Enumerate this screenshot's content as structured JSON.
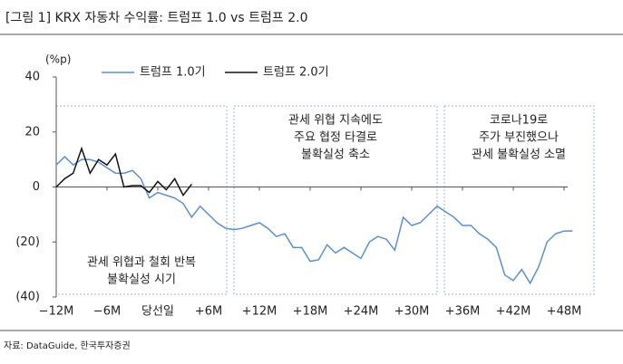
{
  "chart_data": {
    "type": "line",
    "title": "[그림 1] KRX 자동차 수익률: 트럼프 1.0 vs 트럼프 2.0",
    "y_label": "(%p)",
    "source": "자료: DataGuide, 한국투자증권",
    "xlim": [
      -12,
      51
    ],
    "ylim": [
      -40,
      40
    ],
    "xticks": [
      {
        "value": -12,
        "label": "−12M"
      },
      {
        "value": -6,
        "label": "−6M"
      },
      {
        "value": 0,
        "label": "당선일"
      },
      {
        "value": 6,
        "label": "+6M"
      },
      {
        "value": 12,
        "label": "+12M"
      },
      {
        "value": 18,
        "label": "+18M"
      },
      {
        "value": 24,
        "label": "+24M"
      },
      {
        "value": 30,
        "label": "+30M"
      },
      {
        "value": 36,
        "label": "+36M"
      },
      {
        "value": 42,
        "label": "+42M"
      },
      {
        "value": 48,
        "label": "+48M"
      }
    ],
    "yticks": [
      40,
      20,
      0,
      {
        "value": -20,
        "label": "(20)"
      },
      {
        "value": -40,
        "label": "(40)"
      }
    ],
    "series": [
      {
        "name": "트럼프 1.0기",
        "color": "#5b8fcf",
        "x": [
          -12,
          -11,
          -10,
          -9,
          -8,
          -7,
          -6,
          -5,
          -4,
          -3,
          -2,
          -1,
          0,
          1,
          2,
          3,
          4,
          5,
          6,
          7,
          8,
          9,
          10,
          11,
          12,
          13,
          14,
          15,
          16,
          17,
          18,
          19,
          20,
          21,
          22,
          23,
          24,
          25,
          26,
          27,
          28,
          29,
          30,
          31,
          32,
          33,
          34,
          35,
          36,
          37,
          38,
          39,
          40,
          41,
          42,
          43,
          44,
          45,
          46,
          47,
          48,
          49
        ],
        "values": [
          8,
          11,
          8,
          10,
          10,
          9,
          7,
          5,
          5,
          6,
          3,
          -4,
          -2,
          -3,
          -4,
          -6,
          -11,
          -7,
          -10,
          -13,
          -15,
          -15.5,
          -15,
          -14,
          -13,
          -15,
          -18,
          -17,
          -22,
          -22,
          -27,
          -26.5,
          -21,
          -24,
          -22,
          -24,
          -26,
          -20,
          -18,
          -19,
          -23,
          -11,
          -14,
          -13,
          -10,
          -7,
          -9,
          -11,
          -14,
          -14,
          -17,
          -19,
          -22,
          -32,
          -34,
          -30,
          -35,
          -29,
          -20,
          -17,
          -16,
          -16
        ]
      },
      {
        "name": "트럼프 2.0기",
        "color": "#111111",
        "x": [
          -12,
          -11,
          -10,
          -9,
          -8,
          -7,
          -6,
          -5,
          -4,
          -3,
          -2,
          -1,
          0,
          1,
          2,
          3,
          4
        ],
        "values": [
          0,
          3,
          5,
          14,
          5,
          10,
          8,
          12,
          0,
          0.5,
          0.5,
          -2,
          2,
          -1,
          3,
          -3,
          1
        ]
      }
    ],
    "annotations": [
      {
        "lines": [
          "관세 위협과 철회 반복",
          "불확실성 시기"
        ]
      },
      {
        "lines": [
          "관세 위협 지속에도",
          "주요 협정 타결로",
          "불확실성 축소"
        ]
      },
      {
        "lines": [
          "코로나19로",
          "주가 부진했으나",
          "관세 불확실성 소멸"
        ]
      }
    ]
  }
}
